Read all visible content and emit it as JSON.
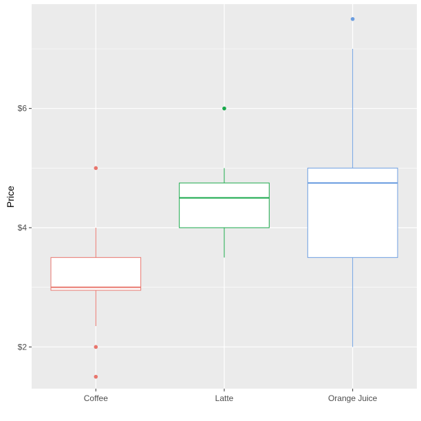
{
  "chart_data": {
    "type": "boxplot",
    "ylabel": "Price",
    "xlabel": "",
    "ylim": [
      1.3,
      7.75
    ],
    "y_ticks": [
      2,
      4,
      6
    ],
    "y_tick_labels": [
      "$2",
      "$4",
      "$6"
    ],
    "y_minor_ticks": [
      3,
      5,
      7
    ],
    "grid": true,
    "legend": "none",
    "panel_background": "#ebebeb",
    "grid_color": "#ffffff",
    "categories": [
      "Coffee",
      "Latte",
      "Orange Juice"
    ],
    "series": [
      {
        "category": "Coffee",
        "color": "#e8766d",
        "whisker_low": 2.35,
        "q1": 2.95,
        "median": 3.0,
        "q3": 3.5,
        "whisker_high": 4.0,
        "outliers": [
          5.0,
          2.0,
          1.5
        ]
      },
      {
        "category": "Latte",
        "color": "#18a84a",
        "whisker_low": 3.5,
        "q1": 4.0,
        "median": 4.5,
        "q3": 4.75,
        "whisker_high": 5.0,
        "outliers": [
          6.0
        ]
      },
      {
        "category": "Orange Juice",
        "color": "#6c9ee0",
        "whisker_low": 2.0,
        "q1": 3.5,
        "median": 4.75,
        "q3": 5.0,
        "whisker_high": 7.0,
        "outliers": [
          7.5
        ]
      }
    ]
  }
}
